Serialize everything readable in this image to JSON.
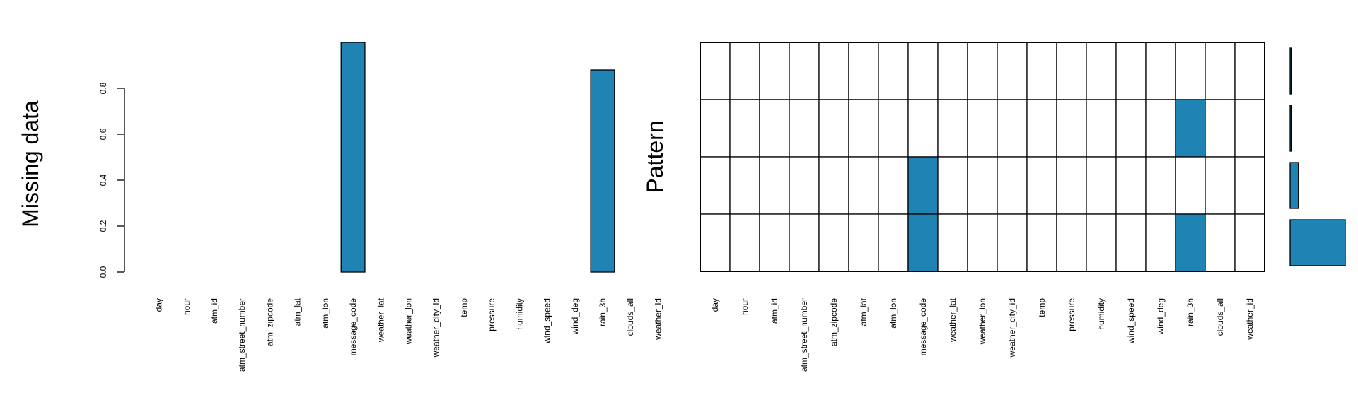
{
  "colors": {
    "bar": "#1f83b4",
    "missing": "#1f83b4",
    "observed": "#ffffff",
    "stroke": "#000000"
  },
  "chart_data": [
    {
      "type": "bar",
      "ylabel": "Missing data",
      "ylim": [
        0,
        1
      ],
      "yticks": [
        "0.0",
        "0.2",
        "0.4",
        "0.6",
        "0.8"
      ],
      "categories": [
        "day",
        "hour",
        "atm_id",
        "atm_street_number",
        "atm_zipcode",
        "atm_lat",
        "atm_lon",
        "message_code",
        "weather_lat",
        "weather_lon",
        "weather_city_id",
        "temp",
        "pressure",
        "humidity",
        "wind_speed",
        "wind_deg",
        "rain_3h",
        "clouds_all",
        "weather_id"
      ],
      "values": [
        0,
        0,
        0,
        0,
        0,
        0,
        0,
        1.0,
        0,
        0,
        0,
        0,
        0,
        0,
        0,
        0,
        0.88,
        0,
        0
      ]
    },
    {
      "type": "heatmap",
      "ylabel": "Pattern",
      "categories": [
        "day",
        "hour",
        "atm_id",
        "atm_street_number",
        "atm_zipcode",
        "atm_lat",
        "atm_lon",
        "message_code",
        "weather_lat",
        "weather_lon",
        "weather_city_id",
        "temp",
        "pressure",
        "humidity",
        "wind_speed",
        "wind_deg",
        "rain_3h",
        "clouds_all",
        "weather_id"
      ],
      "patterns": [
        {
          "missing": [],
          "proportion": 0.001
        },
        {
          "missing": [
            "rain_3h"
          ],
          "proportion": 0.001
        },
        {
          "missing": [
            "message_code"
          ],
          "proportion": 0.15
        },
        {
          "missing": [
            "message_code",
            "rain_3h"
          ],
          "proportion": 1.0
        }
      ]
    }
  ]
}
